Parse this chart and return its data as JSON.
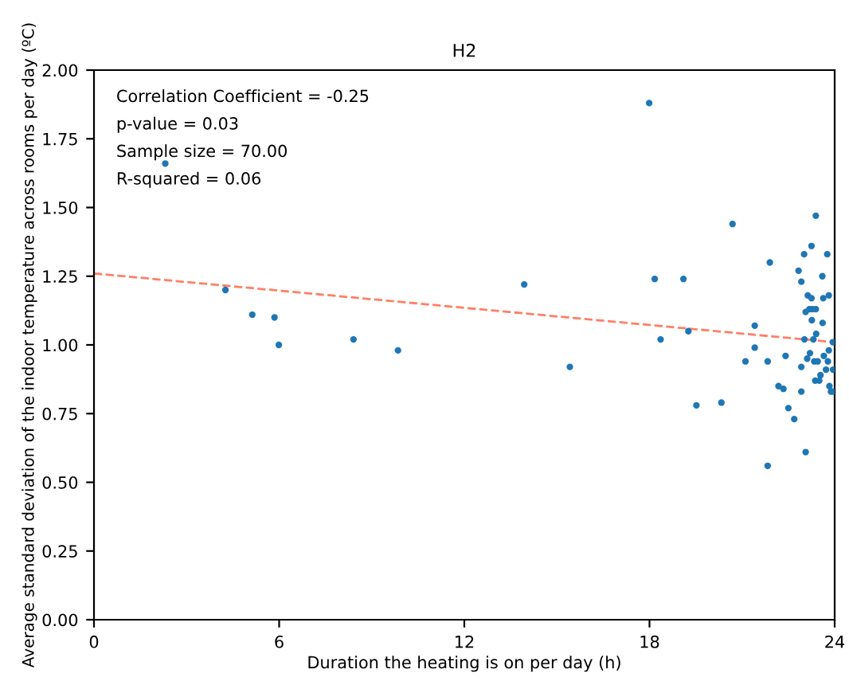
{
  "chart_data": {
    "type": "scatter",
    "title": "H2",
    "xlabel": "Duration the heating is on per day (h)",
    "ylabel": "Average standard deviation of the indoor temperature across rooms per day (ºC)",
    "annotations": [
      "Correlation Coefficient = -0.25",
      "p-value = 0.03",
      "Sample size = 70.00",
      "R-squared = 0.06"
    ],
    "xlim": [
      0,
      24
    ],
    "xticks": [
      0,
      6,
      12,
      18,
      24
    ],
    "ylim": [
      0,
      2
    ],
    "yticks": [
      {
        "value": 0,
        "label": "0.00"
      },
      {
        "value": 0.25,
        "label": "0.25"
      },
      {
        "value": 0.5,
        "label": "0.50"
      },
      {
        "value": 0.75,
        "label": "0.75"
      },
      {
        "value": 1,
        "label": "1.00"
      },
      {
        "value": 1.25,
        "label": "1.25"
      },
      {
        "value": 1.5,
        "label": "1.50"
      },
      {
        "value": 1.75,
        "label": "1.75"
      },
      {
        "value": 2,
        "label": "2.00"
      }
    ],
    "grid": false,
    "legend": false,
    "series": [
      {
        "marker": "circle",
        "color": "#1f77b4",
        "x": [
          2.31,
          4.26,
          5.13,
          5.85,
          5.99,
          8.41,
          9.85,
          13.94,
          15.42,
          17.99,
          18.17,
          18.36,
          19.1,
          19.26,
          19.52,
          20.33,
          20.69,
          21.11,
          21.41,
          21.41,
          21.83,
          21.83,
          21.9,
          22.18,
          22.34,
          22.41,
          22.5,
          22.69,
          22.83,
          22.92,
          22.92,
          22.92,
          23.01,
          23.02,
          23.06,
          23.06,
          23.11,
          23.13,
          23.18,
          23.2,
          23.25,
          23.25,
          23.26,
          23.28,
          23.31,
          23.34,
          23.37,
          23.39,
          23.39,
          23.4,
          23.45,
          23.5,
          23.54,
          23.6,
          23.61,
          23.63,
          23.65,
          23.72,
          23.76,
          23.78,
          23.81,
          23.81,
          23.83,
          23.88,
          23.94,
          23.95,
          23.95
        ],
        "values": [
          1.66,
          1.2,
          1.11,
          1.1,
          1.0,
          1.02,
          0.98,
          1.22,
          0.92,
          1.88,
          1.24,
          1.02,
          1.24,
          1.05,
          0.78,
          0.79,
          1.44,
          0.94,
          1.07,
          0.99,
          0.94,
          0.56,
          1.3,
          0.85,
          0.84,
          0.96,
          0.77,
          0.73,
          1.27,
          1.23,
          0.92,
          0.83,
          1.33,
          1.02,
          0.61,
          1.12,
          0.95,
          1.18,
          1.13,
          0.97,
          1.36,
          1.17,
          1.09,
          1.13,
          1.02,
          0.94,
          0.87,
          1.47,
          1.13,
          1.04,
          0.94,
          0.87,
          0.89,
          1.25,
          1.08,
          1.17,
          0.96,
          0.91,
          1.33,
          0.94,
          1.18,
          0.98,
          0.85,
          0.83,
          1.01,
          0.91,
          0.83
        ]
      },
      {
        "type": "line",
        "color": "#ff7f66",
        "line_style": "dashed",
        "x": [
          0,
          24
        ],
        "values": [
          1.26,
          1.01
        ]
      }
    ]
  }
}
